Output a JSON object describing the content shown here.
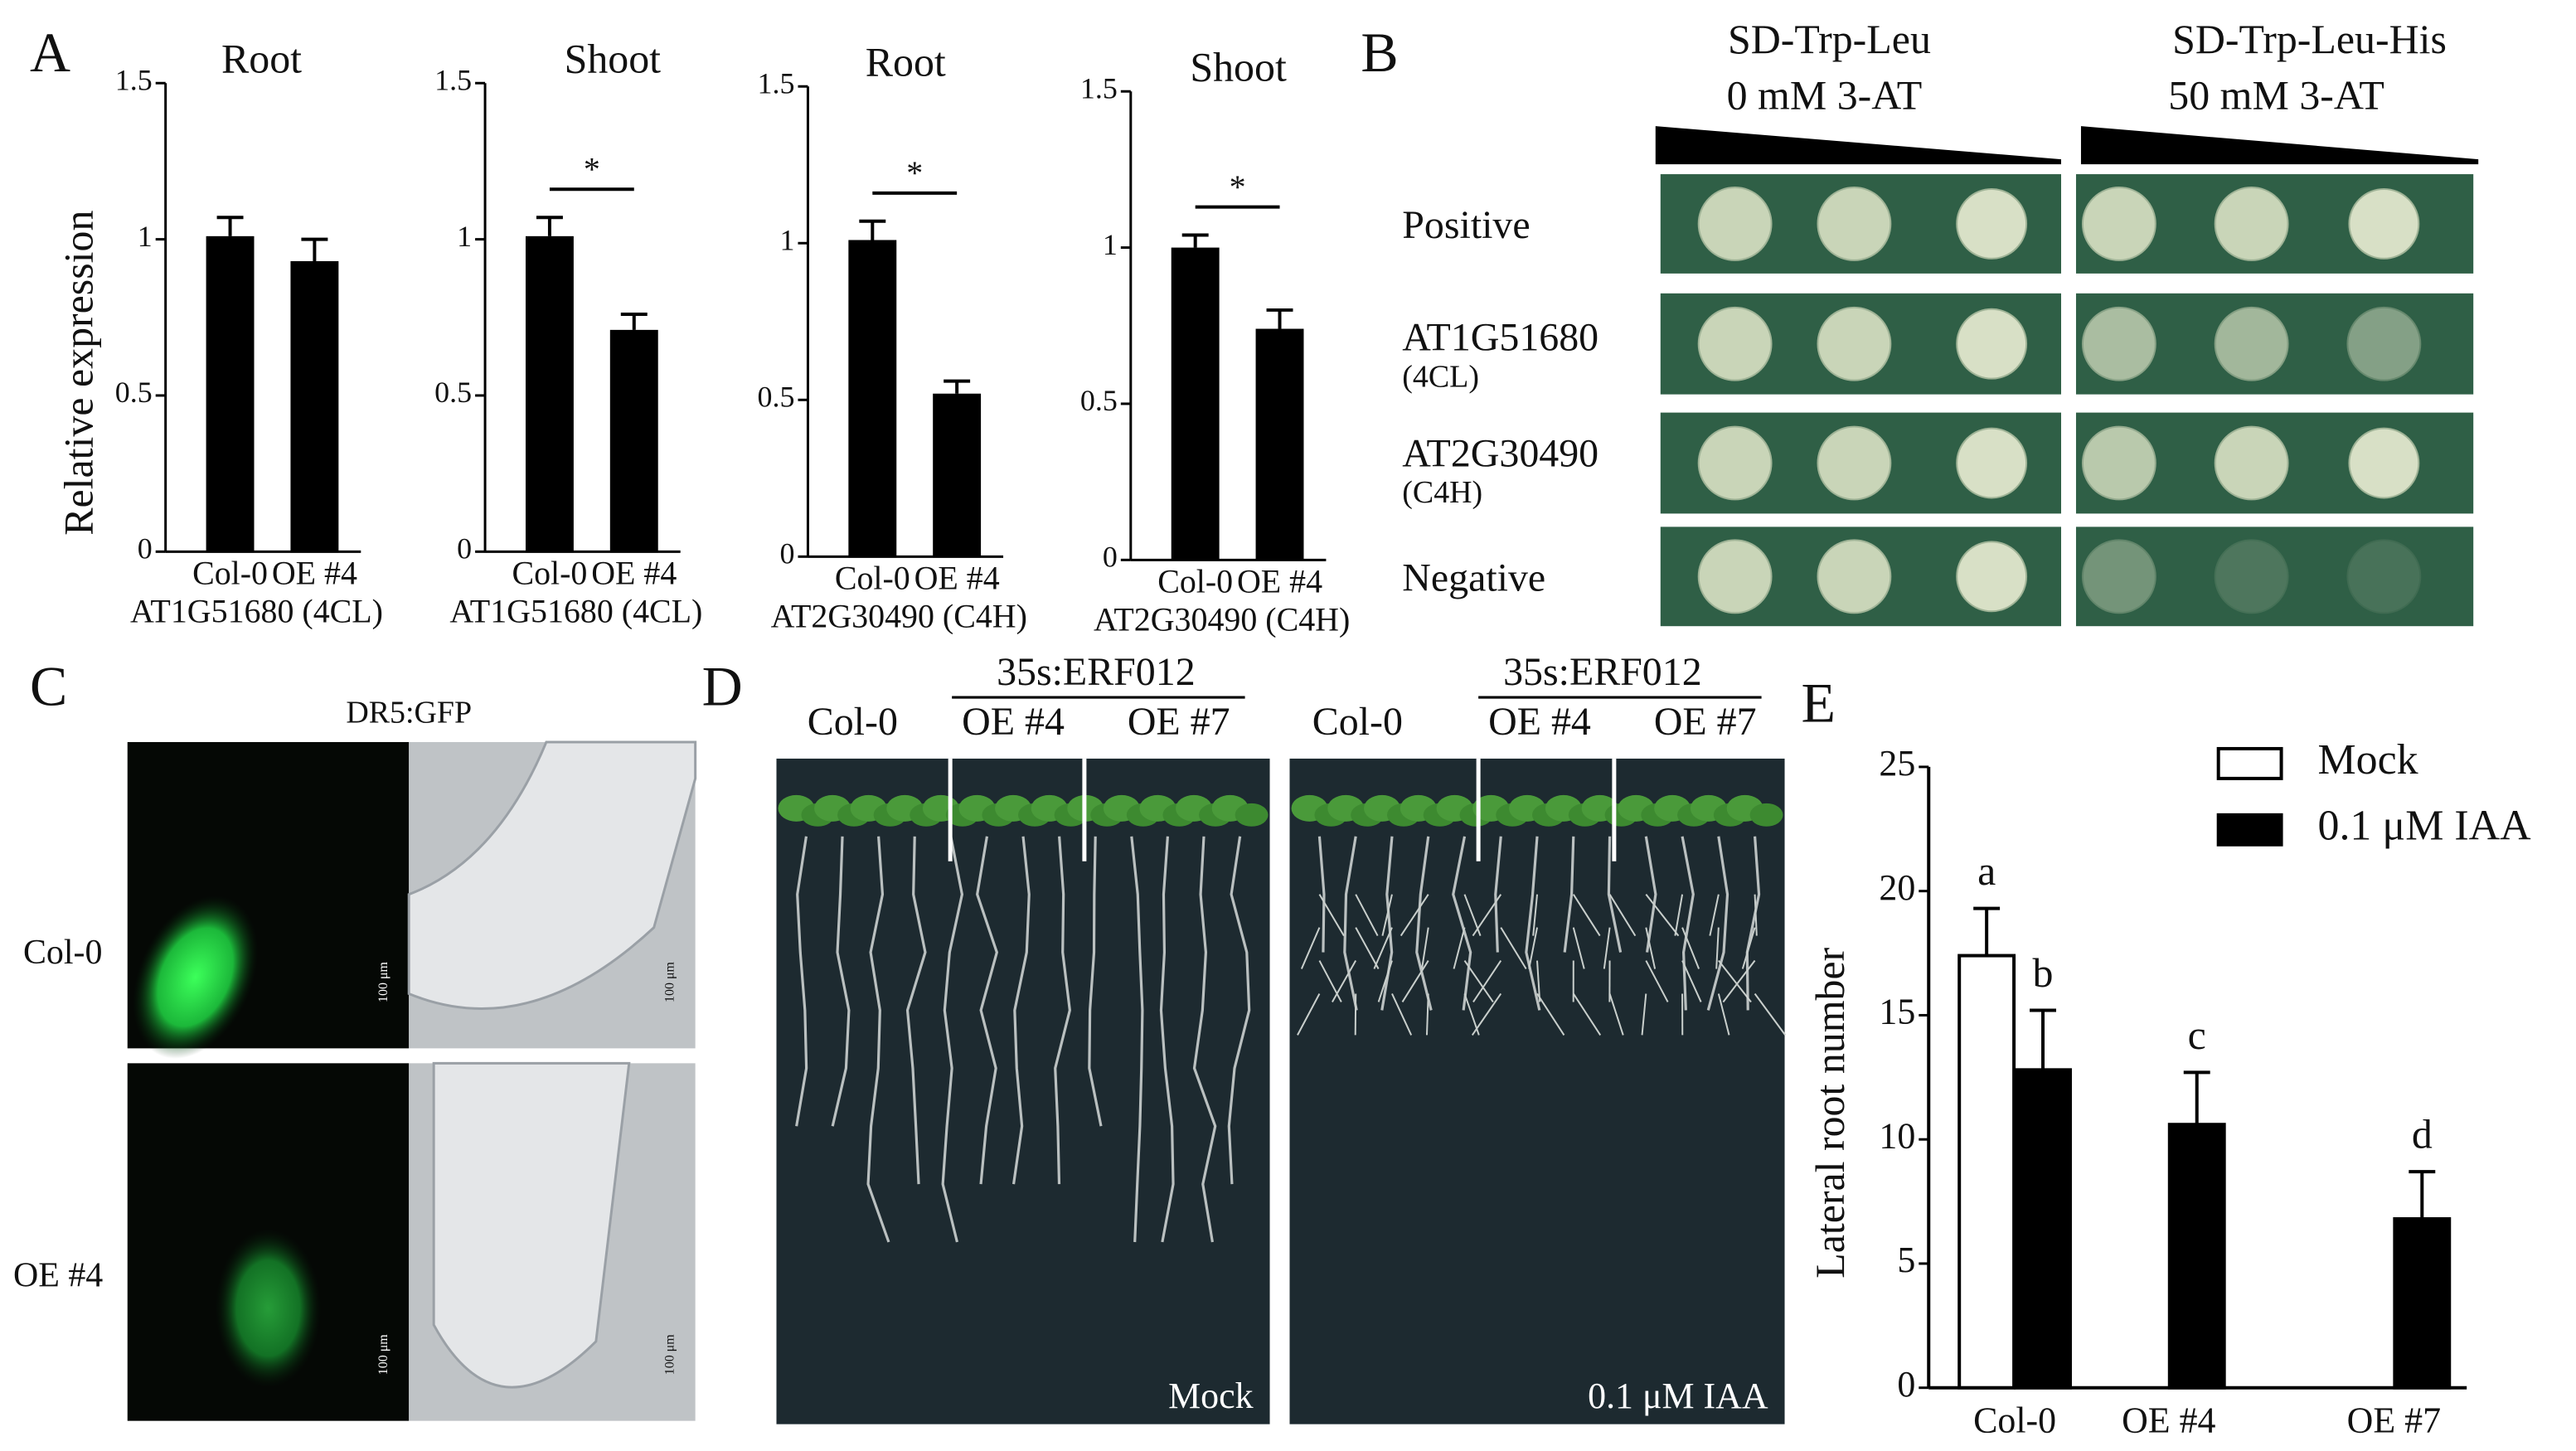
{
  "panel_labels": [
    "A",
    "B",
    "C",
    "D",
    "E"
  ],
  "chart_data": [
    {
      "type": "bar",
      "title": "Root",
      "ylabel": "Relative expression",
      "xlabel": "AT1G51680 (4CL)",
      "categories": [
        "Col-0",
        "OE #4"
      ],
      "values": [
        1.01,
        0.93
      ],
      "errors": [
        0.06,
        0.07
      ],
      "color": "#000000",
      "ylim": [
        0,
        1.5
      ],
      "yticks": [
        0,
        0.5,
        1,
        1.5
      ]
    },
    {
      "type": "bar",
      "title": "Shoot",
      "xlabel": "AT1G51680 (4CL)",
      "categories": [
        "Col-0",
        "OE #4"
      ],
      "values": [
        1.01,
        0.71
      ],
      "errors": [
        0.06,
        0.05
      ],
      "color": "#000000",
      "ylim": [
        0,
        1.5
      ],
      "yticks": [
        0,
        0.5,
        1,
        1.5
      ],
      "annotation": "*"
    },
    {
      "type": "bar",
      "title": "Root",
      "xlabel": "AT2G30490 (C4H)",
      "categories": [
        "Col-0",
        "OE #4"
      ],
      "values": [
        1.01,
        0.52
      ],
      "errors": [
        0.06,
        0.04
      ],
      "color": "#000000",
      "ylim": [
        0,
        1.5
      ],
      "yticks": [
        0,
        0.5,
        1,
        1.5
      ],
      "annotation": "*"
    },
    {
      "type": "bar",
      "title": "Shoot",
      "xlabel": "AT2G30490 (C4H)",
      "categories": [
        "Col-0",
        "OE #4"
      ],
      "values": [
        1.0,
        0.74
      ],
      "errors": [
        0.04,
        0.06
      ],
      "color": "#000000",
      "ylim": [
        0,
        1.5
      ],
      "yticks": [
        0,
        0.5,
        1,
        1.5
      ],
      "annotation": "*"
    },
    {
      "type": "grouped_bar",
      "ylabel": "Lateral root number",
      "categories": [
        "Col-0",
        "OE #4",
        "OE #7"
      ],
      "series": [
        {
          "name": "Mock",
          "color": "#ffffff",
          "values": [
            17.4,
            null,
            null
          ],
          "errors": [
            1.9,
            null,
            null
          ],
          "letters": [
            "a",
            null,
            null
          ]
        },
        {
          "name": "0.1 μM IAA",
          "color": "#000000",
          "values": [
            12.8,
            10.6,
            6.8
          ],
          "errors": [
            2.4,
            2.1,
            1.9
          ],
          "letters": [
            "b",
            "c",
            "d"
          ]
        }
      ],
      "ylim": [
        0,
        25
      ],
      "yticks": [
        0,
        5,
        10,
        15,
        20,
        25
      ],
      "legend": "upper right"
    }
  ],
  "panel_b": {
    "columns": [
      {
        "medium": "SD-Trp-Leu",
        "condition": "0 mM 3-AT"
      },
      {
        "medium": "SD-Trp-Leu-His",
        "condition": "50 mM 3-AT"
      }
    ],
    "rows": [
      {
        "label": "Positive"
      },
      {
        "label": "AT1G51680",
        "sub": "(4CL)"
      },
      {
        "label": "AT2G30490",
        "sub": "(C4H)"
      },
      {
        "label": "Negative"
      }
    ]
  },
  "panel_c": {
    "title": "DR5:GFP",
    "rows": [
      "Col-0",
      "OE #4"
    ],
    "scale_bar": "100 μm"
  },
  "panel_d": {
    "plates": [
      {
        "control": "Col-0",
        "construct": "35s:ERF012",
        "lines": [
          "OE #4",
          "OE #7"
        ],
        "treatment": "Mock"
      },
      {
        "control": "Col-0",
        "construct": "35s:ERF012",
        "lines": [
          "OE #4",
          "OE #7"
        ],
        "treatment": "0.1 μM IAA"
      }
    ]
  }
}
